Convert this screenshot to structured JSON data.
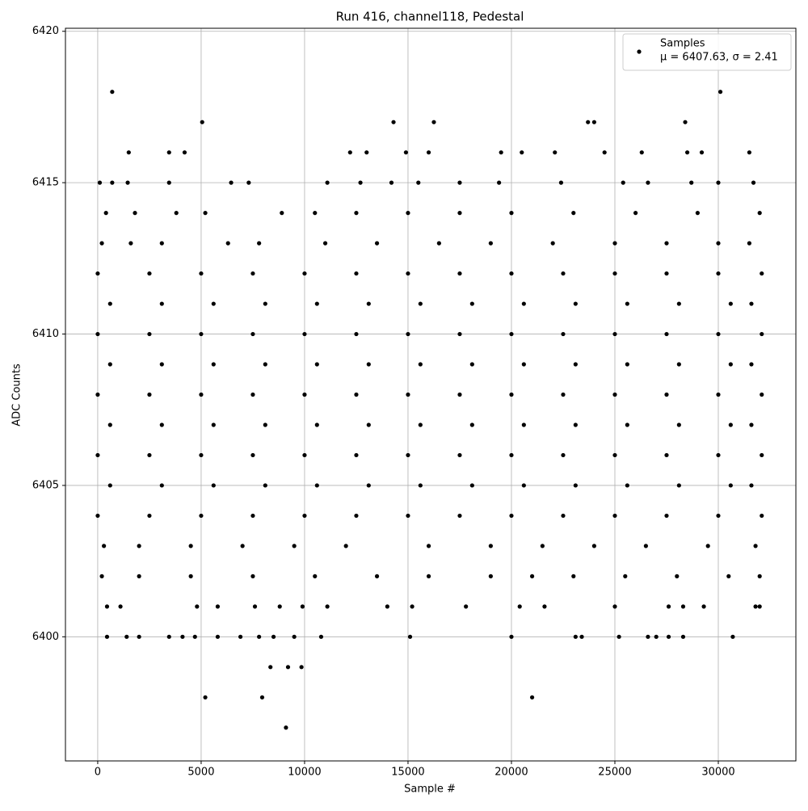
{
  "chart_data": {
    "type": "scatter",
    "title": "Run 416, channel118, Pedestal",
    "xlabel": "Sample #",
    "ylabel": "ADC Counts",
    "xlim": [
      -1560,
      33750
    ],
    "ylim": [
      6395.9,
      6420.1
    ],
    "xticks": [
      0,
      5000,
      10000,
      15000,
      20000,
      25000,
      30000
    ],
    "yticks": [
      6400,
      6405,
      6410,
      6415,
      6420
    ],
    "grid": true,
    "legend": "upper right",
    "legend_note": "μ = 6407.63, σ = 2.41",
    "series": [
      {
        "name": "Samples",
        "color": "#000000",
        "x": [
          700,
          5050,
          30100,
          14300,
          16250,
          23700,
          24000,
          28400,
          5200,
          7950,
          21000,
          9100,
          8350,
          9200,
          9850,
          1500,
          3450,
          4200,
          12200,
          13000,
          14900,
          16000,
          19500,
          20500,
          22100,
          24500,
          26300,
          28500,
          29200,
          31500,
          100,
          700,
          1450,
          3450,
          6450,
          7300,
          11100,
          12700,
          14200,
          15500,
          17500,
          19400,
          22400,
          25400,
          26600,
          28700,
          30000,
          31700,
          400,
          1800,
          3800,
          5200,
          8900,
          10500,
          12500,
          15000,
          17500,
          20000,
          23000,
          26000,
          29000,
          32000,
          200,
          1600,
          3100,
          6300,
          7800,
          11000,
          13500,
          16500,
          19000,
          22000,
          25000,
          27500,
          30000,
          31500,
          0,
          2500,
          5000,
          7500,
          10000,
          12500,
          15000,
          17500,
          20000,
          22500,
          25000,
          27500,
          30000,
          32100,
          600,
          3100,
          5600,
          8100,
          10600,
          13100,
          15600,
          18100,
          20600,
          23100,
          25600,
          28100,
          30600,
          31600,
          0,
          2500,
          5000,
          7500,
          10000,
          12500,
          15000,
          17500,
          20000,
          22500,
          25000,
          27500,
          30000,
          32100,
          600,
          3100,
          5600,
          8100,
          10600,
          13100,
          15600,
          18100,
          20600,
          23100,
          25600,
          28100,
          30600,
          31600,
          0,
          2500,
          5000,
          7500,
          10000,
          12500,
          15000,
          17500,
          20000,
          22500,
          25000,
          27500,
          30000,
          32100,
          600,
          3100,
          5600,
          8100,
          10600,
          13100,
          15600,
          18100,
          20600,
          23100,
          25600,
          28100,
          30600,
          31600,
          0,
          2500,
          5000,
          7500,
          10000,
          12500,
          15000,
          17500,
          20000,
          22500,
          25000,
          27500,
          30000,
          32100,
          600,
          3100,
          5600,
          8100,
          10600,
          13100,
          15600,
          18100,
          20600,
          23100,
          25600,
          28100,
          30600,
          31600,
          0,
          2500,
          5000,
          7500,
          10000,
          12500,
          15000,
          17500,
          20000,
          22500,
          25000,
          27500,
          30000,
          32100,
          300,
          2000,
          4500,
          7000,
          9500,
          12000,
          16000,
          19000,
          21500,
          24000,
          26500,
          29500,
          31800,
          200,
          2000,
          4500,
          7500,
          10500,
          13500,
          16000,
          19000,
          21000,
          23000,
          25500,
          28000,
          30500,
          32000,
          450,
          1100,
          4800,
          5800,
          7600,
          8800,
          9900,
          11100,
          14000,
          15200,
          17800,
          20400,
          21600,
          25000,
          27600,
          28300,
          29300,
          31800,
          32000,
          450,
          1400,
          2000,
          3450,
          4100,
          4700,
          5800,
          6900,
          7800,
          8500,
          9500,
          10800,
          15100,
          20000,
          23100,
          23400,
          25200,
          26600,
          27000,
          27600,
          28300,
          30700
        ],
        "values": [
          6418,
          6417,
          6418,
          6417,
          6417,
          6417,
          6417,
          6417,
          6398,
          6398,
          6398,
          6397,
          6399,
          6399,
          6399,
          6416,
          6416,
          6416,
          6416,
          6416,
          6416,
          6416,
          6416,
          6416,
          6416,
          6416,
          6416,
          6416,
          6416,
          6416,
          6415,
          6415,
          6415,
          6415,
          6415,
          6415,
          6415,
          6415,
          6415,
          6415,
          6415,
          6415,
          6415,
          6415,
          6415,
          6415,
          6415,
          6415,
          6414,
          6414,
          6414,
          6414,
          6414,
          6414,
          6414,
          6414,
          6414,
          6414,
          6414,
          6414,
          6414,
          6414,
          6413,
          6413,
          6413,
          6413,
          6413,
          6413,
          6413,
          6413,
          6413,
          6413,
          6413,
          6413,
          6413,
          6413,
          6412,
          6412,
          6412,
          6412,
          6412,
          6412,
          6412,
          6412,
          6412,
          6412,
          6412,
          6412,
          6412,
          6412,
          6411,
          6411,
          6411,
          6411,
          6411,
          6411,
          6411,
          6411,
          6411,
          6411,
          6411,
          6411,
          6411,
          6411,
          6410,
          6410,
          6410,
          6410,
          6410,
          6410,
          6410,
          6410,
          6410,
          6410,
          6410,
          6410,
          6410,
          6410,
          6409,
          6409,
          6409,
          6409,
          6409,
          6409,
          6409,
          6409,
          6409,
          6409,
          6409,
          6409,
          6409,
          6409,
          6408,
          6408,
          6408,
          6408,
          6408,
          6408,
          6408,
          6408,
          6408,
          6408,
          6408,
          6408,
          6408,
          6408,
          6407,
          6407,
          6407,
          6407,
          6407,
          6407,
          6407,
          6407,
          6407,
          6407,
          6407,
          6407,
          6407,
          6407,
          6406,
          6406,
          6406,
          6406,
          6406,
          6406,
          6406,
          6406,
          6406,
          6406,
          6406,
          6406,
          6406,
          6406,
          6405,
          6405,
          6405,
          6405,
          6405,
          6405,
          6405,
          6405,
          6405,
          6405,
          6405,
          6405,
          6405,
          6405,
          6404,
          6404,
          6404,
          6404,
          6404,
          6404,
          6404,
          6404,
          6404,
          6404,
          6404,
          6404,
          6404,
          6404,
          6403,
          6403,
          6403,
          6403,
          6403,
          6403,
          6403,
          6403,
          6403,
          6403,
          6403,
          6403,
          6403,
          6402,
          6402,
          6402,
          6402,
          6402,
          6402,
          6402,
          6402,
          6402,
          6402,
          6402,
          6402,
          6402,
          6402,
          6401,
          6401,
          6401,
          6401,
          6401,
          6401,
          6401,
          6401,
          6401,
          6401,
          6401,
          6401,
          6401,
          6401,
          6401,
          6401,
          6401,
          6401,
          6401,
          6400,
          6400,
          6400,
          6400,
          6400,
          6400,
          6400,
          6400,
          6400,
          6400,
          6400,
          6400,
          6400,
          6400,
          6400,
          6400,
          6400,
          6400,
          6400,
          6400,
          6400,
          6400
        ]
      }
    ]
  }
}
